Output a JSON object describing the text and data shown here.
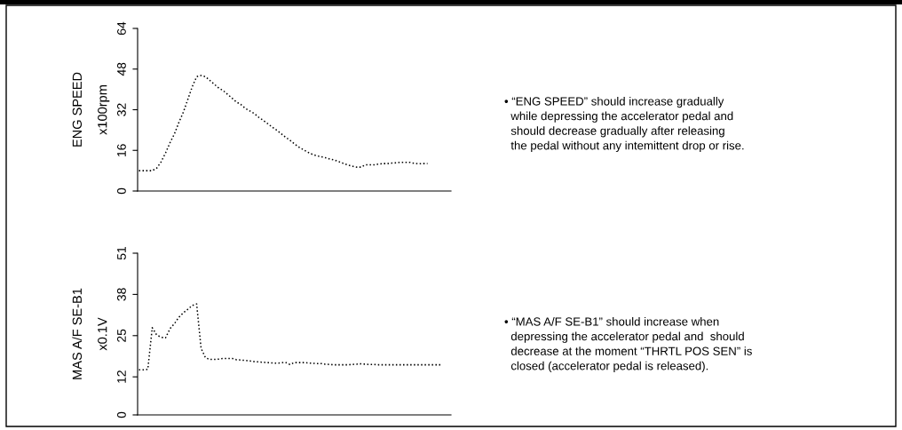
{
  "chart_data": [
    {
      "type": "line",
      "ylabel": "ENG SPEED\nx100rpm",
      "tick_labels": "y",
      "line_style": "dotted",
      "grid": false,
      "legend": false,
      "ylim": [
        0,
        64
      ],
      "yticks": [
        0,
        16,
        32,
        48,
        64
      ],
      "categories": [
        null,
        null,
        null,
        null,
        null,
        null,
        null,
        null,
        null,
        null,
        null,
        null,
        null,
        null,
        null,
        null,
        null,
        null,
        null,
        null,
        null,
        null,
        null,
        null,
        null,
        null,
        null,
        null,
        null,
        null,
        null,
        null,
        null,
        null,
        null,
        null,
        null,
        null,
        null,
        null,
        null,
        null,
        null,
        null,
        null,
        null,
        null,
        null,
        null,
        null,
        null,
        null,
        null,
        null,
        null,
        null,
        null,
        null,
        null,
        null,
        null,
        null,
        null,
        null,
        null,
        null,
        null,
        null,
        null,
        null,
        null
      ],
      "series": [
        {
          "color": "#000000",
          "values": [
            8,
            8,
            8,
            8,
            9,
            11.5,
            15,
            19,
            22.5,
            27,
            31,
            36,
            41,
            45,
            45.5,
            45,
            43.5,
            42,
            40.5,
            39.5,
            38,
            36.5,
            35,
            34,
            32.5,
            31.5,
            30.5,
            29,
            27.8,
            26.5,
            25.2,
            24,
            22.6,
            21.2,
            20,
            18.6,
            17.3,
            16.3,
            15.3,
            14.5,
            13.9,
            13.5,
            13.1,
            12.6,
            12.2,
            11.6,
            10.9,
            10.3,
            9.8,
            9.4,
            9.4,
            10.3,
            10.3,
            10.3,
            10.6,
            10.8,
            10.8,
            11,
            11.1,
            11.3,
            11.3,
            11.3,
            10.9,
            10.7,
            10.8,
            10.8,
            null,
            null,
            null,
            null,
            null
          ]
        }
      ],
      "annotations": [
        "• “ENG SPEED” should increase gradually\nwhile depressing the accelerator pedal and\nshould decrease gradually after releasing\nthe pedal without any intemittent drop or rise."
      ]
    },
    {
      "type": "line",
      "ylabel": "MAS A/F SE-B1\nx0.1V",
      "tick_labels": "y",
      "line_style": "dotted",
      "grid": false,
      "legend": false,
      "ylim": [
        0,
        51
      ],
      "yticks": [
        0,
        12,
        25,
        38,
        51
      ],
      "categories": [
        null,
        null,
        null,
        null,
        null,
        null,
        null,
        null,
        null,
        null,
        null,
        null,
        null,
        null,
        null,
        null,
        null,
        null,
        null,
        null,
        null,
        null,
        null,
        null,
        null,
        null,
        null,
        null,
        null,
        null,
        null,
        null,
        null,
        null,
        null,
        null,
        null,
        null,
        null,
        null,
        null,
        null,
        null,
        null,
        null,
        null,
        null,
        null,
        null,
        null,
        null,
        null,
        null,
        null,
        null,
        null,
        null,
        null,
        null,
        null,
        null,
        null,
        null,
        null,
        null,
        null,
        null,
        null,
        null,
        null,
        null
      ],
      "series": [
        {
          "color": "#000000",
          "values": [
            14.2,
            14.2,
            14.4,
            27.5,
            25.2,
            24.5,
            24.3,
            27.2,
            28.8,
            30.8,
            32.2,
            33.3,
            34.5,
            35,
            21,
            18,
            17.5,
            17.5,
            17.6,
            17.8,
            17.8,
            17.8,
            17.4,
            17.3,
            17.2,
            17,
            16.8,
            16.7,
            16.6,
            16.5,
            16.4,
            16.3,
            16.4,
            16.6,
            15.9,
            16.5,
            16.5,
            16.5,
            16.4,
            16.3,
            16.2,
            16.2,
            16,
            15.9,
            15.8,
            15.8,
            15.8,
            15.8,
            15.9,
            16,
            16.1,
            16,
            15.9,
            15.9,
            15.8,
            15.8,
            15.8,
            15.8,
            15.8,
            15.8,
            15.8,
            15.8,
            15.8,
            15.8,
            15.8,
            15.8,
            15.8,
            15.8,
            15.8,
            null,
            null
          ]
        }
      ],
      "annotations": [
        "• “MAS A/F SE-B1” should increase when\ndepressing the accelerator pedal and  should\ndecrease at the moment “THRTL POS SEN” is\nclosed (accelerator pedal is released)."
      ]
    }
  ]
}
